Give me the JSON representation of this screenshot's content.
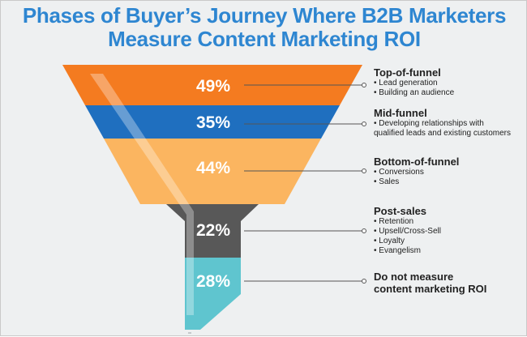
{
  "title": {
    "line1": "Phases of Buyer’s Journey Where B2B Marketers",
    "line2": "Measure Content Marketing ROI"
  },
  "colors": {
    "title": "#2e86d1",
    "top_funnel": "#f47b20",
    "mid_funnel": "#1f6fbf",
    "bottom_funnel": "#fbb560",
    "post_sales": "#585858",
    "no_measure": "#5fc5cf"
  },
  "stages": [
    {
      "name": "Top-of-funnel",
      "percent": "49%",
      "bullets": [
        "• Lead generation",
        "• Building an audience"
      ]
    },
    {
      "name": "Mid-funnel",
      "percent": "35%",
      "bullets": [
        "• Developing relationships with",
        "qualified leads and existing customers"
      ]
    },
    {
      "name": "Bottom-of-funnel",
      "percent": "44%",
      "bullets": [
        "• Conversions",
        "• Sales"
      ]
    },
    {
      "name": "Post-sales",
      "percent": "22%",
      "bullets": [
        "• Retention",
        "• Upsell/Cross-Sell",
        "• Loyalty",
        "• Evangelism"
      ]
    },
    {
      "name": "Do not measure",
      "name_line2": "content marketing ROI",
      "percent": "28%",
      "bullets": []
    }
  ]
}
